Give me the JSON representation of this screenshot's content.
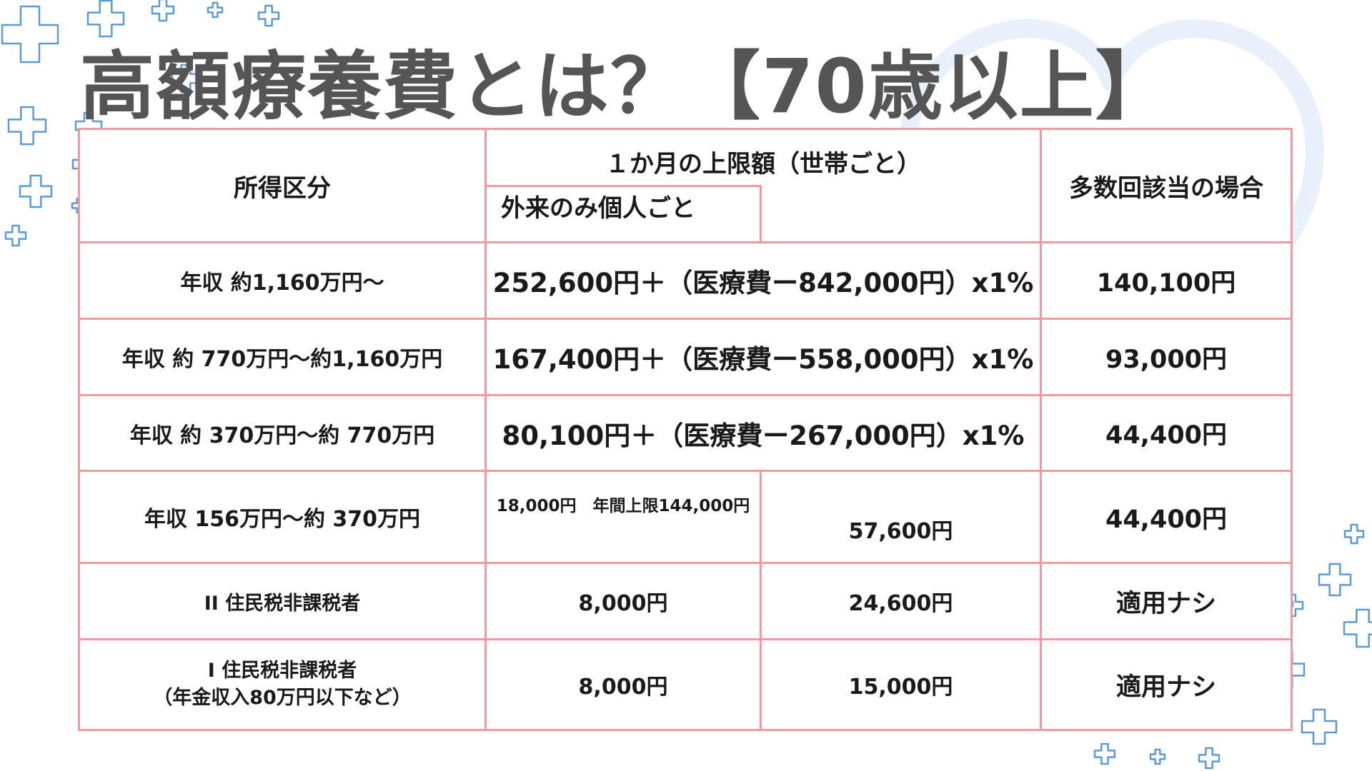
{
  "title": "高額療養費とは？【70歳以上】",
  "colors": {
    "title": "#555555",
    "table_border": "#f09a9f",
    "accent_blue": "#5b9bd5",
    "heart_outline": "#e8f1fb"
  },
  "decorations": {
    "background_icons": [
      "plus-outline-icon",
      "heart-pulse-icon"
    ]
  },
  "table": {
    "headers": {
      "income": "所得区分",
      "monthly_limit": "１か月の上限額（世帯ごと）",
      "outpatient": "外来のみ個人ごと",
      "multiple": "多数回該当の場合"
    },
    "rows": [
      {
        "income": "年収 約1,160万円～",
        "household": "252,600円＋（医療費ー842,000円）x1%",
        "multiple": "140,100円"
      },
      {
        "income": "年収 約 770万円～約1,160万円",
        "household": "167,400円＋（医療費ー558,000円）x1%",
        "multiple": "93,000円"
      },
      {
        "income": "年収 約 370万円～約 770万円",
        "household": "80,100円＋（医療費ー267,000円）x1%",
        "multiple": "44,400円"
      },
      {
        "income": "年収  156万円～約 370万円",
        "outpatient": "18,000円　年間上限144,000円",
        "household": "57,600円",
        "multiple": "44,400円"
      },
      {
        "income": "II 住民税非課税者",
        "outpatient": "8,000円",
        "household": "24,600円",
        "multiple": "適用ナシ"
      },
      {
        "income_line1": "I 住民税非課税者",
        "income_line2": "（年金収入80万円以下など）",
        "outpatient": "8,000円",
        "household": "15,000円",
        "multiple": "適用ナシ"
      }
    ]
  }
}
